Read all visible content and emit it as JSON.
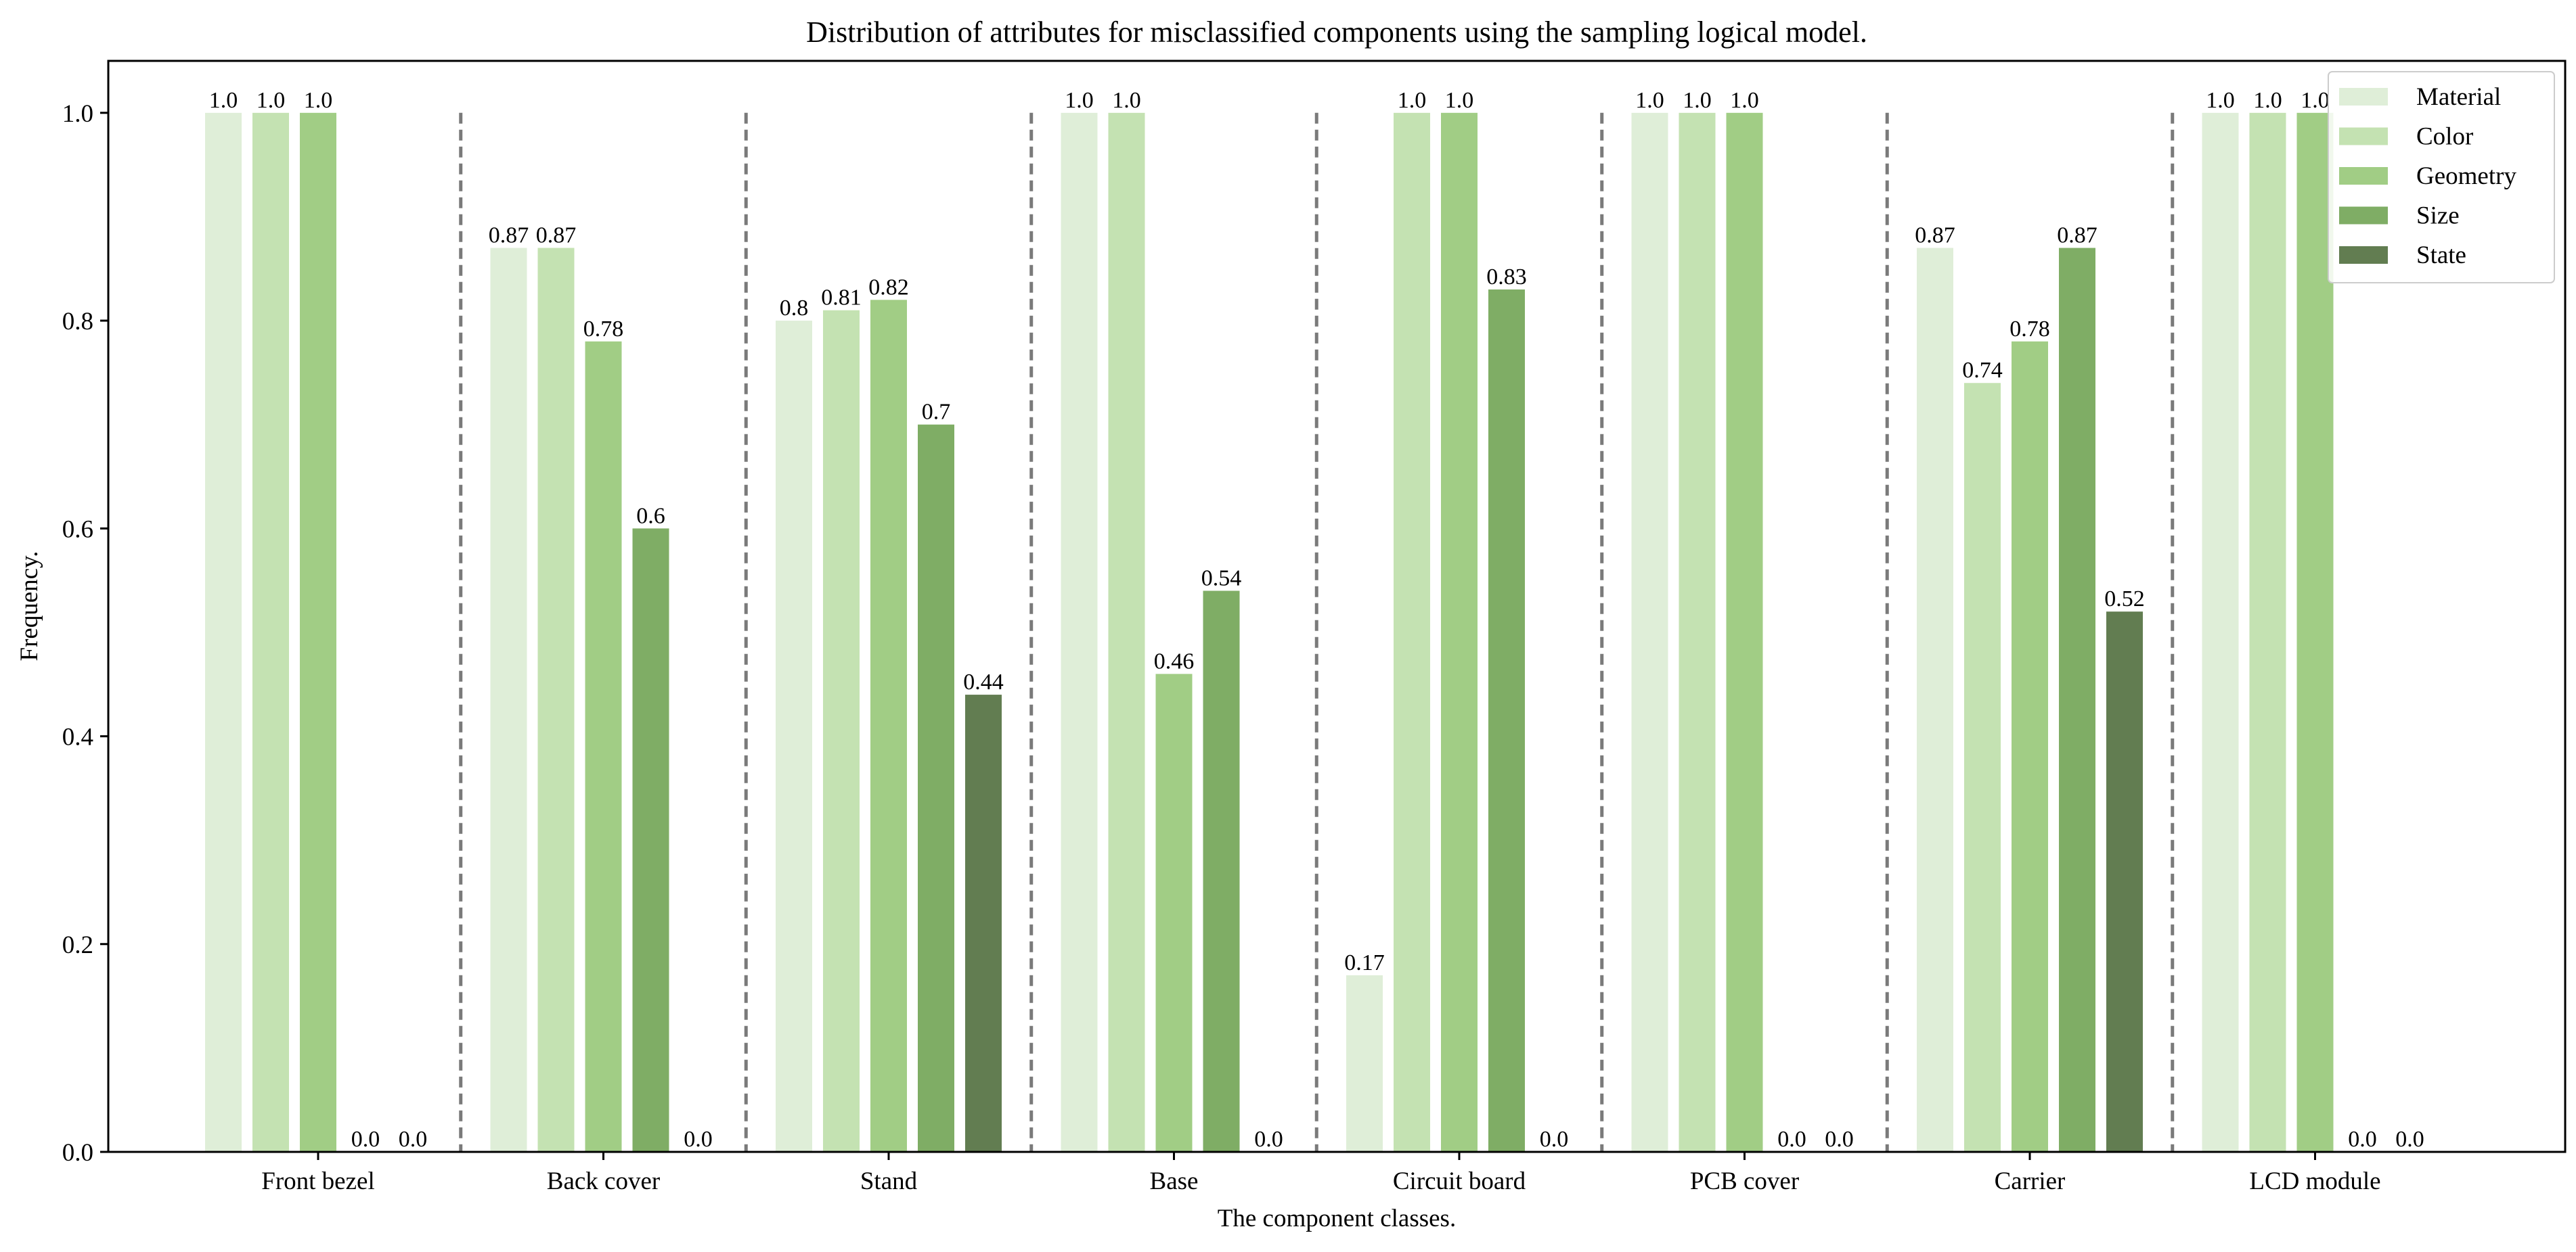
{
  "chart_data": {
    "type": "bar",
    "title": "Distribution of attributes for misclassified components using the sampling logical model.",
    "xlabel": "The component classes.",
    "ylabel": "Frequency.",
    "ylim": [
      0,
      1.05
    ],
    "yticks": [
      0.0,
      0.2,
      0.4,
      0.6,
      0.8,
      1.0
    ],
    "ytick_labels": [
      "0.0",
      "0.2",
      "0.4",
      "0.6",
      "0.8",
      "1.0"
    ],
    "grid": false,
    "legend_position": "top-right",
    "group_separators": "dashed",
    "categories": [
      "Front bezel",
      "Back cover",
      "Stand",
      "Base",
      "Circuit board",
      "PCB cover",
      "Carrier",
      "LCD module"
    ],
    "series": [
      {
        "name": "Material",
        "color": "#dfeed8",
        "values": [
          1.0,
          0.87,
          0.8,
          1.0,
          0.17,
          1.0,
          0.87,
          1.0
        ],
        "labels": [
          "1.0",
          "0.87",
          "0.8",
          "1.0",
          "0.17",
          "1.0",
          "0.87",
          "1.0"
        ]
      },
      {
        "name": "Color",
        "color": "#c4e2b2",
        "values": [
          1.0,
          0.87,
          0.81,
          1.0,
          1.0,
          1.0,
          0.74,
          1.0
        ],
        "labels": [
          "1.0",
          "0.87",
          "0.81",
          "1.0",
          "1.0",
          "1.0",
          "0.74",
          "1.0"
        ]
      },
      {
        "name": "Geometry",
        "color": "#a1cd85",
        "values": [
          1.0,
          0.78,
          0.82,
          0.46,
          1.0,
          1.0,
          0.78,
          1.0
        ],
        "labels": [
          "1.0",
          "0.78",
          "0.82",
          "0.46",
          "1.0",
          "1.0",
          "0.78",
          "1.0"
        ]
      },
      {
        "name": "Size",
        "color": "#7fad65",
        "values": [
          0.0,
          0.6,
          0.7,
          0.54,
          0.83,
          0.0,
          0.87,
          0.0
        ],
        "labels": [
          "0.0",
          "0.6",
          "0.7",
          "0.54",
          "0.83",
          "0.0",
          "0.87",
          "0.0"
        ]
      },
      {
        "name": "State",
        "color": "#627d51",
        "values": [
          0.0,
          0.0,
          0.44,
          0.0,
          0.0,
          0.0,
          0.52,
          0.0
        ],
        "labels": [
          "0.0",
          "0.0",
          "0.44",
          "0.0",
          "0.0",
          "0.0",
          "0.52",
          "0.0"
        ]
      }
    ]
  }
}
